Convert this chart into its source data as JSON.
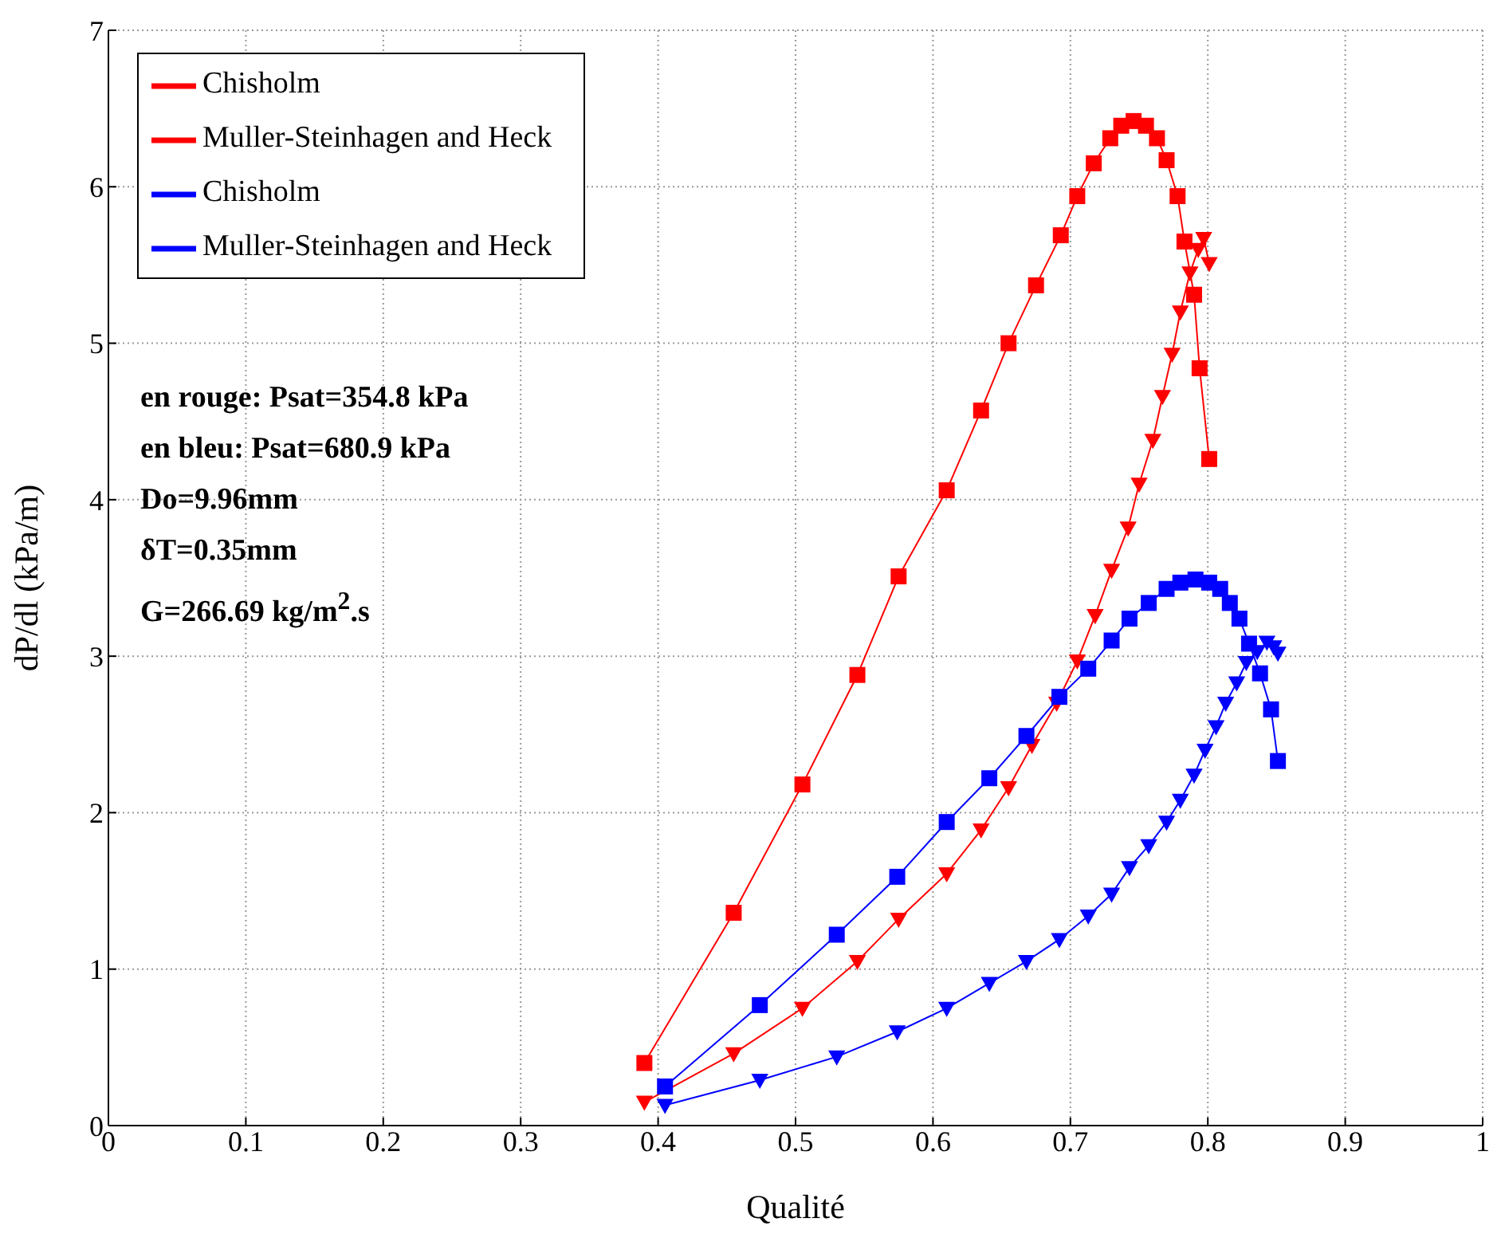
{
  "chart_data": {
    "type": "line",
    "xlabel": "Qualité",
    "ylabel": "dP/dl (kPa/m)",
    "xlim": [
      0,
      1
    ],
    "xticks": [
      0,
      0.1,
      0.2,
      0.3,
      0.4,
      0.5,
      0.6,
      0.7,
      0.8,
      0.9,
      1
    ],
    "ylim": [
      0,
      7
    ],
    "yticks": [
      0,
      1,
      2,
      3,
      4,
      5,
      6,
      7
    ],
    "grid": true,
    "legend": "top left",
    "line_style": "solid",
    "annotations": [
      "en rouge: Psat=354.8 kPa",
      "en bleu: Psat=680.9 kPa",
      "Do=9.96mm",
      "δT=0.35mm",
      "G=266.69 kg/m$^{2}$.s"
    ],
    "series": [
      {
        "name": "Chisholm",
        "color": "#ff0000",
        "marker": "square",
        "x": [
          0.39,
          0.455,
          0.505,
          0.545,
          0.575,
          0.61,
          0.635,
          0.655,
          0.675,
          0.693,
          0.705,
          0.717,
          0.729,
          0.737,
          0.746,
          0.755,
          0.763,
          0.77,
          0.778,
          0.783,
          0.79,
          0.794,
          0.801
        ],
        "values": [
          0.4,
          1.36,
          2.18,
          2.88,
          3.51,
          4.06,
          4.57,
          5.0,
          5.37,
          5.69,
          5.94,
          6.15,
          6.31,
          6.39,
          6.42,
          6.39,
          6.31,
          6.17,
          5.94,
          5.65,
          5.31,
          4.84,
          4.26
        ]
      },
      {
        "name": "Muller-Steinhagen and Heck",
        "color": "#ff0000",
        "marker": "triangle",
        "x": [
          0.39,
          0.455,
          0.505,
          0.545,
          0.575,
          0.61,
          0.635,
          0.655,
          0.672,
          0.69,
          0.705,
          0.718,
          0.73,
          0.742,
          0.75,
          0.76,
          0.767,
          0.774,
          0.78,
          0.787,
          0.793,
          0.797,
          0.801
        ],
        "values": [
          0.15,
          0.46,
          0.75,
          1.05,
          1.32,
          1.61,
          1.89,
          2.16,
          2.43,
          2.7,
          2.97,
          3.26,
          3.55,
          3.82,
          4.1,
          4.38,
          4.66,
          4.93,
          5.2,
          5.45,
          5.6,
          5.67,
          5.51
        ]
      },
      {
        "name": "Chisholm",
        "color": "#0000ff",
        "marker": "square",
        "x": [
          0.405,
          0.474,
          0.53,
          0.574,
          0.61,
          0.641,
          0.668,
          0.692,
          0.713,
          0.73,
          0.743,
          0.757,
          0.77,
          0.78,
          0.791,
          0.801,
          0.809,
          0.816,
          0.823,
          0.83,
          0.838,
          0.846,
          0.851
        ],
        "values": [
          0.25,
          0.77,
          1.22,
          1.59,
          1.94,
          2.22,
          2.49,
          2.74,
          2.92,
          3.1,
          3.24,
          3.34,
          3.43,
          3.47,
          3.49,
          3.47,
          3.43,
          3.34,
          3.24,
          3.08,
          2.89,
          2.66,
          2.33
        ]
      },
      {
        "name": "Muller-Steinhagen and Heck",
        "color": "#0000ff",
        "marker": "triangle",
        "x": [
          0.405,
          0.474,
          0.53,
          0.574,
          0.61,
          0.641,
          0.668,
          0.692,
          0.713,
          0.73,
          0.743,
          0.757,
          0.77,
          0.78,
          0.79,
          0.798,
          0.806,
          0.813,
          0.821,
          0.828,
          0.836,
          0.843,
          0.848,
          0.851
        ],
        "values": [
          0.13,
          0.29,
          0.44,
          0.6,
          0.75,
          0.91,
          1.05,
          1.19,
          1.34,
          1.48,
          1.65,
          1.79,
          1.94,
          2.08,
          2.24,
          2.4,
          2.55,
          2.7,
          2.83,
          2.96,
          3.03,
          3.09,
          3.06,
          3.02
        ]
      }
    ]
  }
}
